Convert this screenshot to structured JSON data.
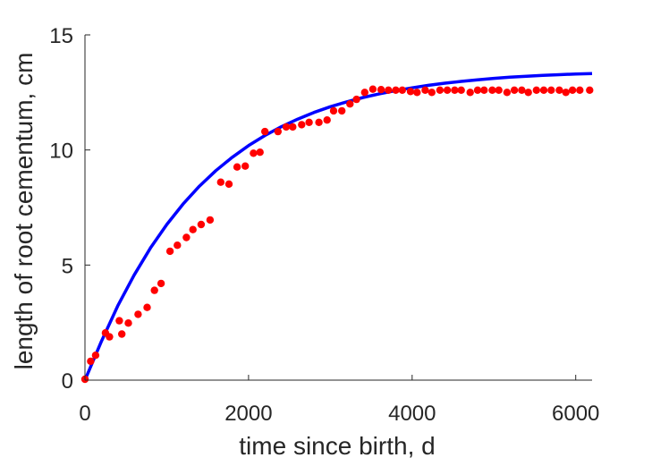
{
  "chart_data": {
    "type": "scatter",
    "title": "",
    "xlabel": "time since birth, d",
    "ylabel": "length of root cementum, cm",
    "xlim": [
      0,
      6200
    ],
    "ylim": [
      0,
      15
    ],
    "xticks": [
      0,
      2000,
      4000,
      6000
    ],
    "yticks": [
      0,
      5,
      10,
      15
    ],
    "xtick_labels": [
      "0",
      "2000",
      "4000",
      "6000"
    ],
    "ytick_labels": [
      "0",
      "5",
      "10",
      "15"
    ],
    "grid": false,
    "box": false,
    "legend": null,
    "series": [
      {
        "kind": "scatter",
        "color": "#ff0000",
        "x": [
          0,
          70,
          130,
          250,
          300,
          420,
          450,
          530,
          650,
          760,
          850,
          930,
          1040,
          1130,
          1240,
          1320,
          1420,
          1530,
          1660,
          1760,
          1860,
          1960,
          2060,
          2140,
          2200,
          2360,
          2460,
          2540,
          2650,
          2740,
          2860,
          2960,
          3040,
          3140,
          3240,
          3320,
          3420,
          3520,
          3620,
          3710,
          3800,
          3880,
          3980,
          4060,
          4160,
          4240,
          4340,
          4430,
          4520,
          4600,
          4710,
          4800,
          4880,
          4980,
          5060,
          5160,
          5250,
          5340,
          5420,
          5520,
          5610,
          5700,
          5800,
          5880,
          5960,
          6050,
          6170
        ],
        "y": [
          0.04,
          0.82,
          1.08,
          2.05,
          1.88,
          2.58,
          2.0,
          2.48,
          2.86,
          3.16,
          3.9,
          4.2,
          5.6,
          5.86,
          6.2,
          6.54,
          6.76,
          6.96,
          8.6,
          8.52,
          9.26,
          9.3,
          9.86,
          9.9,
          10.8,
          10.8,
          11.0,
          11.0,
          11.1,
          11.2,
          11.2,
          11.3,
          11.7,
          11.7,
          12.0,
          12.2,
          12.5,
          12.64,
          12.62,
          12.6,
          12.6,
          12.6,
          12.54,
          12.5,
          12.6,
          12.5,
          12.6,
          12.6,
          12.6,
          12.6,
          12.5,
          12.6,
          12.6,
          12.6,
          12.6,
          12.5,
          12.6,
          12.6,
          12.5,
          12.6,
          12.6,
          12.6,
          12.6,
          12.5,
          12.6,
          12.6,
          12.6
        ]
      },
      {
        "kind": "line",
        "color": "#0000ff",
        "x": [
          0,
          200,
          400,
          600,
          800,
          1000,
          1200,
          1400,
          1600,
          1800,
          2000,
          2200,
          2400,
          2600,
          2800,
          3000,
          3200,
          3400,
          3600,
          3800,
          4000,
          4200,
          4400,
          4600,
          4800,
          5000,
          5200,
          5400,
          5600,
          5800,
          6000,
          6200
        ],
        "y": [
          0.0,
          1.68,
          3.22,
          4.56,
          5.74,
          6.76,
          7.65,
          8.43,
          9.1,
          9.68,
          10.19,
          10.63,
          11.01,
          11.34,
          11.63,
          11.88,
          12.09,
          12.28,
          12.44,
          12.58,
          12.7,
          12.81,
          12.9,
          12.98,
          13.05,
          13.11,
          13.16,
          13.2,
          13.24,
          13.27,
          13.3,
          13.32
        ]
      }
    ]
  }
}
